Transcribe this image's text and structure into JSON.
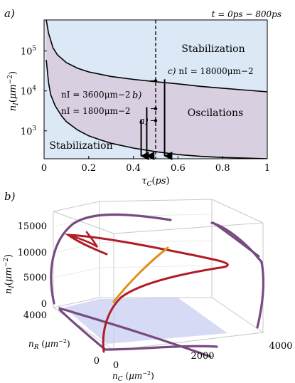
{
  "chart_data": [
    {
      "type": "area",
      "panel_label": "a)",
      "title": "t = 0ps − 800ps",
      "xlabel": "τC(ps)",
      "ylabel": "nI(μm−2)",
      "xlim": [
        0,
        1
      ],
      "ylim": [
        200,
        600000
      ],
      "yscale": "log",
      "x_ticks": [
        "0",
        "0.2",
        "0.4",
        "0.6",
        "0.8",
        "1"
      ],
      "y_ticks": [
        {
          "base": "10",
          "exp": "3",
          "value": 1000
        },
        {
          "base": "10",
          "exp": "4",
          "value": 10000
        },
        {
          "base": "10",
          "exp": "5",
          "value": 100000
        }
      ],
      "regions": [
        {
          "name": "Stabilization",
          "color": "#dce8f6",
          "position": "upper"
        },
        {
          "name": "Oscilations",
          "color": "#d8d0e0",
          "position": "middle"
        },
        {
          "name": "Stabilization",
          "color": "#dce8f6",
          "position": "lower"
        }
      ],
      "boundaries": {
        "upper": {
          "x": [
            0.01,
            0.02,
            0.04,
            0.06,
            0.1,
            0.15,
            0.2,
            0.3,
            0.4,
            0.5,
            0.6,
            0.7,
            0.8,
            0.9,
            1.0
          ],
          "y": [
            600000,
            280000,
            120000,
            80000,
            51000,
            37000,
            30000,
            23000,
            19500,
            17000,
            15000,
            13000,
            11700,
            10500,
            9500
          ]
        },
        "lower": {
          "x": [
            0.01,
            0.02,
            0.03,
            0.05,
            0.08,
            0.1,
            0.15,
            0.2,
            0.25,
            0.3,
            0.4,
            0.5,
            0.6,
            0.7,
            0.8,
            0.9,
            1.0
          ],
          "y": [
            60000,
            16000,
            8000,
            4200,
            2300,
            1700,
            1050,
            750,
            600,
            490,
            370,
            300,
            255,
            230,
            215,
            208,
            200
          ]
        }
      },
      "dashed_line_x": 0.5,
      "points": [
        {
          "label": "nI = 1800μm−2",
          "id": "a)",
          "x": 0.5,
          "y": 1800
        },
        {
          "label": "nI = 3600μm−2",
          "id": "b)",
          "x": 0.5,
          "y": 3600
        },
        {
          "label": "nI = 18000μm−2",
          "id": "c)",
          "x": 0.5,
          "y": 18000
        }
      ],
      "arrows": [
        {
          "x": 0.435,
          "from_y": 1800,
          "to_y": 200
        },
        {
          "x": 0.46,
          "from_y": 3600,
          "to_y": 200
        },
        {
          "x": 0.54,
          "from_y": 18000,
          "to_y": 200
        }
      ]
    },
    {
      "type": "line",
      "panel_label": "b)",
      "axes": {
        "x": {
          "label": "nC (μm−2)",
          "ticks": [
            "0",
            "2000",
            "4000"
          ],
          "range": [
            0,
            4000
          ]
        },
        "y": {
          "label": "nR (μm−2)",
          "ticks": [
            "0",
            "4000"
          ],
          "range": [
            0,
            4000
          ]
        },
        "z": {
          "label": "nI(μm−2)",
          "ticks": [
            "0",
            "5000",
            "10000",
            "15000"
          ],
          "range": [
            0,
            17000
          ]
        }
      },
      "series_colors": {
        "trajectory": "#b01c28",
        "projection": "#774a80",
        "highlight": "#e09018"
      },
      "plane": {
        "color": "#c8cdf0",
        "nI": 0
      }
    }
  ]
}
